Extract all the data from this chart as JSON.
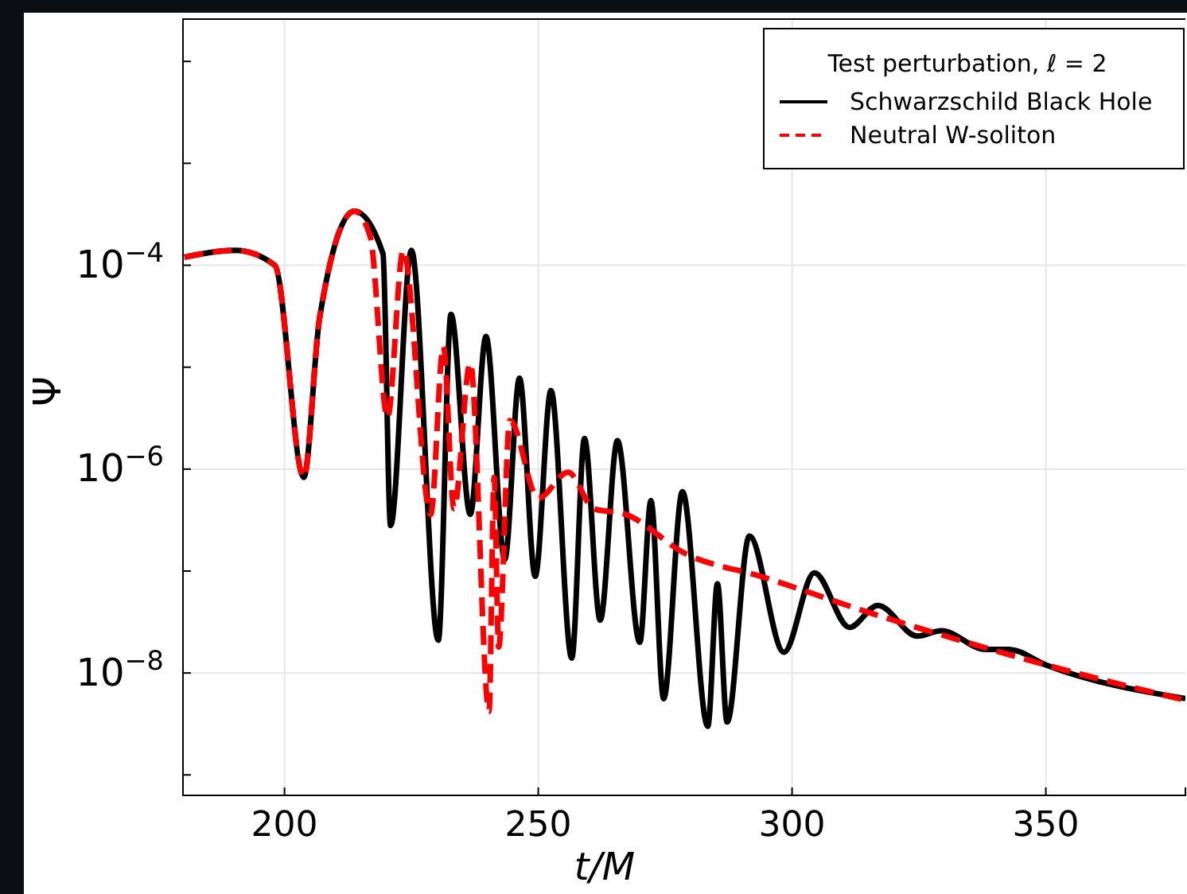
{
  "chart_data": {
    "type": "line",
    "xlabel": "t/M",
    "ylabel": "Ψ",
    "legend_title": "Test perturbation, ℓ = 2",
    "xlim": [
      180,
      377.5
    ],
    "xticks": [
      200,
      250,
      300,
      350
    ],
    "ylim": [
      6.3e-10,
      0.026
    ],
    "log": "y",
    "yticks": [
      {
        "value": 1e-09,
        "label": null
      },
      {
        "value": 1e-08,
        "label": "10$^{−8}$"
      },
      {
        "value": 1e-07,
        "label": null
      },
      {
        "value": 1e-06,
        "label": "10$^{−6}$"
      },
      {
        "value": 1e-05,
        "label": null
      },
      {
        "value": 0.0001,
        "label": "10$^{−4}$"
      },
      {
        "value": 0.001,
        "label": null
      },
      {
        "value": 0.01,
        "label": null
      }
    ],
    "grid": true,
    "legend": "top right",
    "series": [
      {
        "name": "Schwarzschild Black Hole",
        "color": "#000000",
        "line_style": "solid",
        "x": [
          180.3,
          190.3,
          198.1,
          203.8,
          206.9,
          213.8,
          219.4,
          220.9,
          225.0,
          230.3,
          232.8,
          236.6,
          239.7,
          243.4,
          246.3,
          249.4,
          252.5,
          256.6,
          259.1,
          262.2,
          265.6,
          270.0,
          272.2,
          274.7,
          278.4,
          283.4,
          285.3,
          287.2,
          291.6,
          298.4,
          304.4,
          311.3,
          316.9,
          324.7,
          329.4,
          338.1,
          342.8,
          350.0,
          377.5
        ],
        "values": [
          0.00012,
          0.00014,
          0.0001,
          8.3e-07,
          3e-05,
          0.00034,
          0.00013,
          2.8e-07,
          0.00014,
          2.1e-08,
          3.3e-05,
          3.6e-07,
          2e-05,
          1.3e-07,
          7.8e-06,
          8.9e-08,
          5.9e-06,
          1.4e-08,
          2e-06,
          3.3e-08,
          1.9e-06,
          2e-08,
          4.9e-07,
          5.6e-09,
          6e-07,
          3e-09,
          7.5e-08,
          3.3e-09,
          2.2e-07,
          1.6e-08,
          9.6e-08,
          2.8e-08,
          4.6e-08,
          2.3e-08,
          2.6e-08,
          1.7e-08,
          1.7e-08,
          1.2e-08,
          5.6e-09
        ]
      },
      {
        "name": "Neutral W-soliton",
        "color": "#ff0000",
        "line_style": "dashed",
        "x": [
          180.3,
          190.3,
          198.1,
          203.8,
          206.9,
          213.8,
          216.9,
          220.3,
          223.4,
          228.8,
          231.3,
          233.4,
          236.6,
          240.3,
          241.3,
          242.2,
          244.4,
          250.0,
          255.9,
          260.9,
          267.2,
          278.8,
          294.4,
          315.3,
          335.9,
          350.0,
          377.5
        ],
        "values": [
          0.00012,
          0.00014,
          0.0001,
          8.3e-07,
          3e-05,
          0.00034,
          0.00019,
          3.2e-06,
          0.00014,
          3.6e-07,
          1.6e-05,
          4.1e-07,
          1.1e-05,
          4.2e-09,
          8.3e-07,
          1.8e-08,
          3e-06,
          5.2e-07,
          9.3e-07,
          4.1e-07,
          3.6e-07,
          1.5e-07,
          8.7e-08,
          3.9e-08,
          1.9e-08,
          1.2e-08,
          5.4e-09
        ]
      }
    ]
  }
}
